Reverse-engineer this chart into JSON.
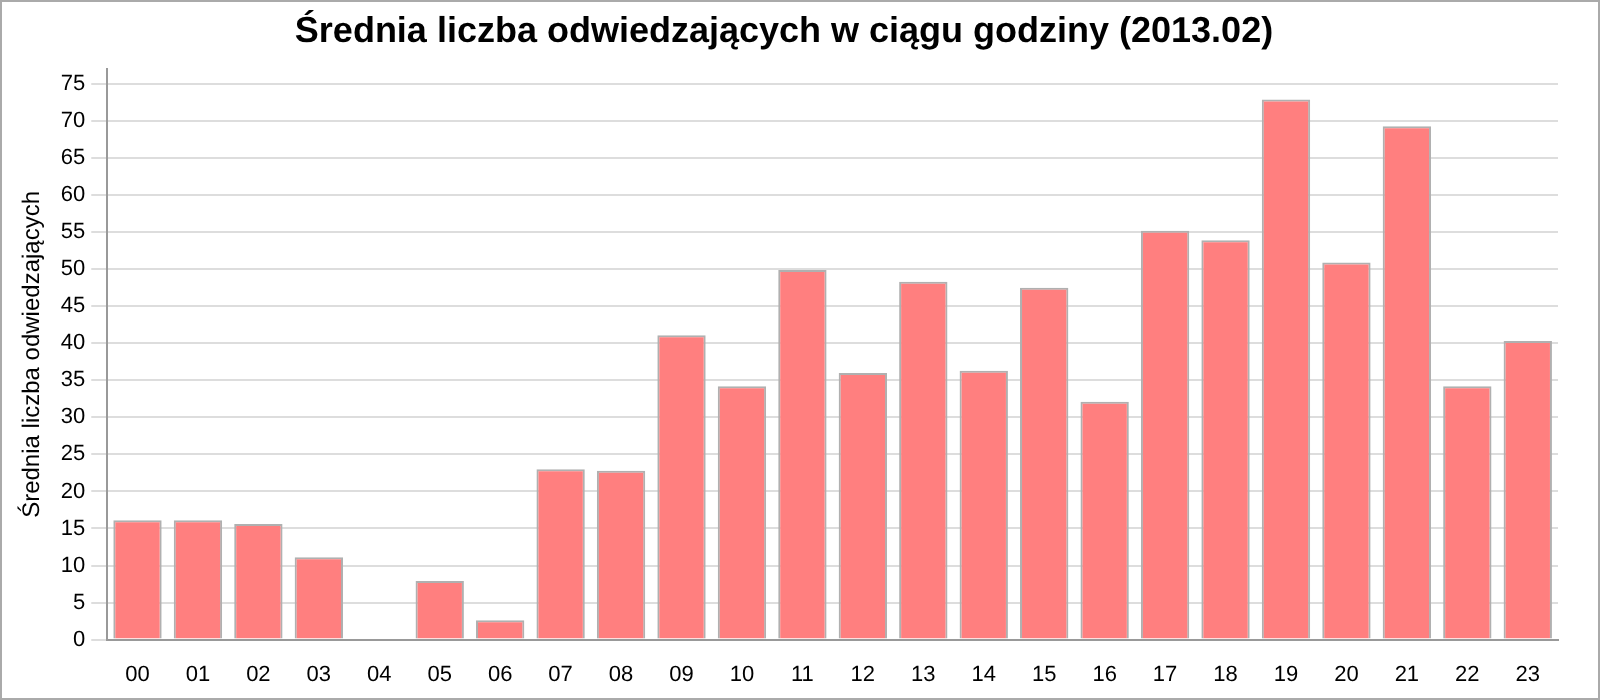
{
  "chart_data": {
    "type": "bar",
    "title": "Średnia liczba odwiedzających w ciągu godziny (2013.02)",
    "ylabel": "Średnia liczba odwiedzających",
    "categories": [
      "00",
      "01",
      "02",
      "03",
      "04",
      "05",
      "06",
      "07",
      "08",
      "09",
      "10",
      "11",
      "12",
      "13",
      "14",
      "15",
      "16",
      "17",
      "18",
      "19",
      "20",
      "21",
      "22",
      "23"
    ],
    "values": [
      16.1,
      16.1,
      15.6,
      11.1,
      0,
      7.9,
      2.6,
      23,
      22.8,
      41.1,
      34.2,
      49.9,
      36,
      48.3,
      36.3,
      47.5,
      32.1,
      55.2,
      53.9,
      72.9,
      50.9,
      69.3,
      34.2,
      40.3
    ],
    "color": "#ff7f7f",
    "ylim": [
      0,
      77
    ],
    "yticks": [
      0,
      5,
      10,
      15,
      20,
      25,
      30,
      35,
      40,
      45,
      50,
      55,
      60,
      65,
      70,
      75
    ],
    "grid": "y",
    "legend": false
  }
}
